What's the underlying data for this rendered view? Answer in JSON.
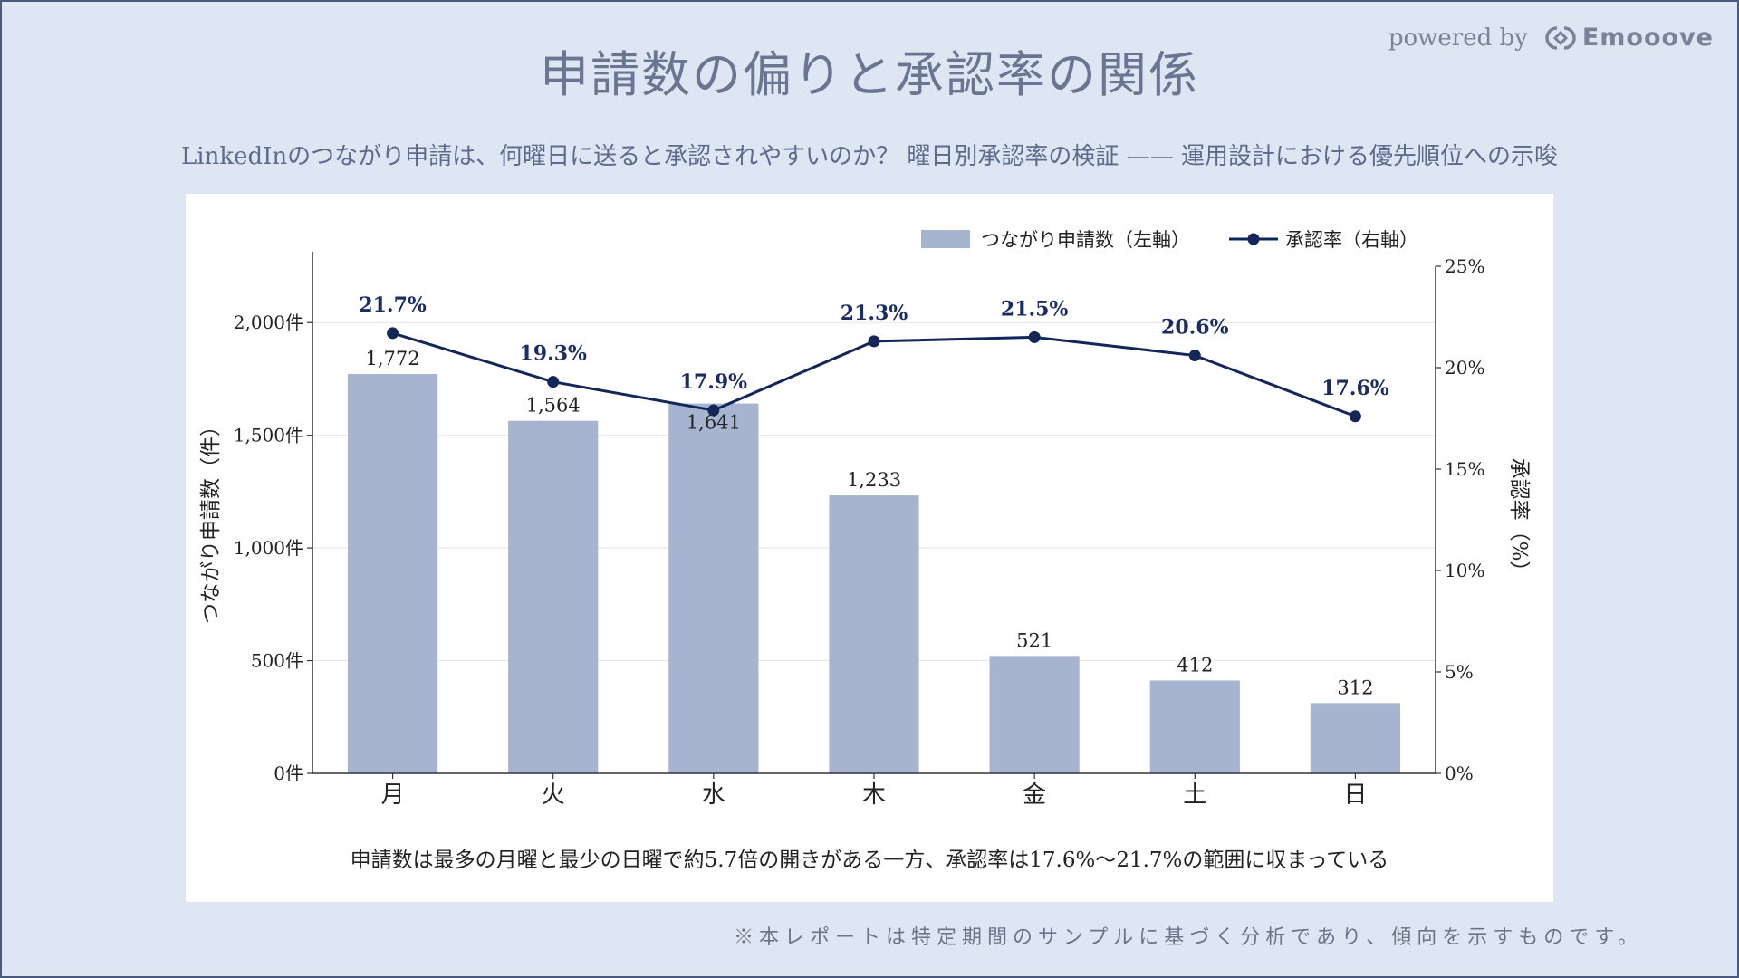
{
  "page": {
    "title": "申請数の偏りと承認率の関係",
    "subtitle": "LinkedInのつながり申請は、何曜日に送ると承認されやすいのか？ 曜日別承認率の検証 —— 運用設計における優先順位への示唆",
    "powered_by": "powered by",
    "brand": "Emooove",
    "caption": "申請数は最多の月曜と最少の日曜で約5.7倍の開きがある一方、承認率は17.6%〜21.7%の範囲に収まっている",
    "footnote": "※本レポートは特定期間のサンプルに基づく分析であり、傾向を示すものです。"
  },
  "colors": {
    "background": "#dfe6f3",
    "bar": "#a7b4cf",
    "line": "#13265a",
    "label": "#1b2c63",
    "title": "#6a7592"
  },
  "chart_data": {
    "type": "bar+line",
    "categories": [
      "月",
      "火",
      "水",
      "木",
      "金",
      "土",
      "日"
    ],
    "series": [
      {
        "name": "つながり申請数（左軸）",
        "type": "bar",
        "axis": "left",
        "values": [
          1772,
          1564,
          1641,
          1233,
          521,
          412,
          312
        ],
        "labels": [
          "1,772",
          "1,564",
          "1,641",
          "1,233",
          "521",
          "412",
          "312"
        ]
      },
      {
        "name": "承認率（右軸）",
        "type": "line",
        "axis": "right",
        "values": [
          21.7,
          19.3,
          17.9,
          21.3,
          21.5,
          20.6,
          17.6
        ],
        "labels": [
          "21.7%",
          "19.3%",
          "17.9%",
          "21.3%",
          "21.5%",
          "20.6%",
          "17.6%"
        ]
      }
    ],
    "y_left": {
      "label": "つながり申請数（件）",
      "ticks": [
        0,
        500,
        1000,
        1500,
        2000
      ],
      "tick_labels": [
        "0件",
        "500件",
        "1,000件",
        "1,500件",
        "2,000件"
      ],
      "range": [
        0,
        2250
      ]
    },
    "y_right": {
      "label": "承認率（%）",
      "ticks": [
        0,
        5,
        10,
        15,
        20,
        25
      ],
      "tick_labels": [
        "0%",
        "5%",
        "10%",
        "15%",
        "20%",
        "25%"
      ],
      "range": [
        0,
        25
      ]
    },
    "grid": true,
    "legend": "top-right"
  }
}
